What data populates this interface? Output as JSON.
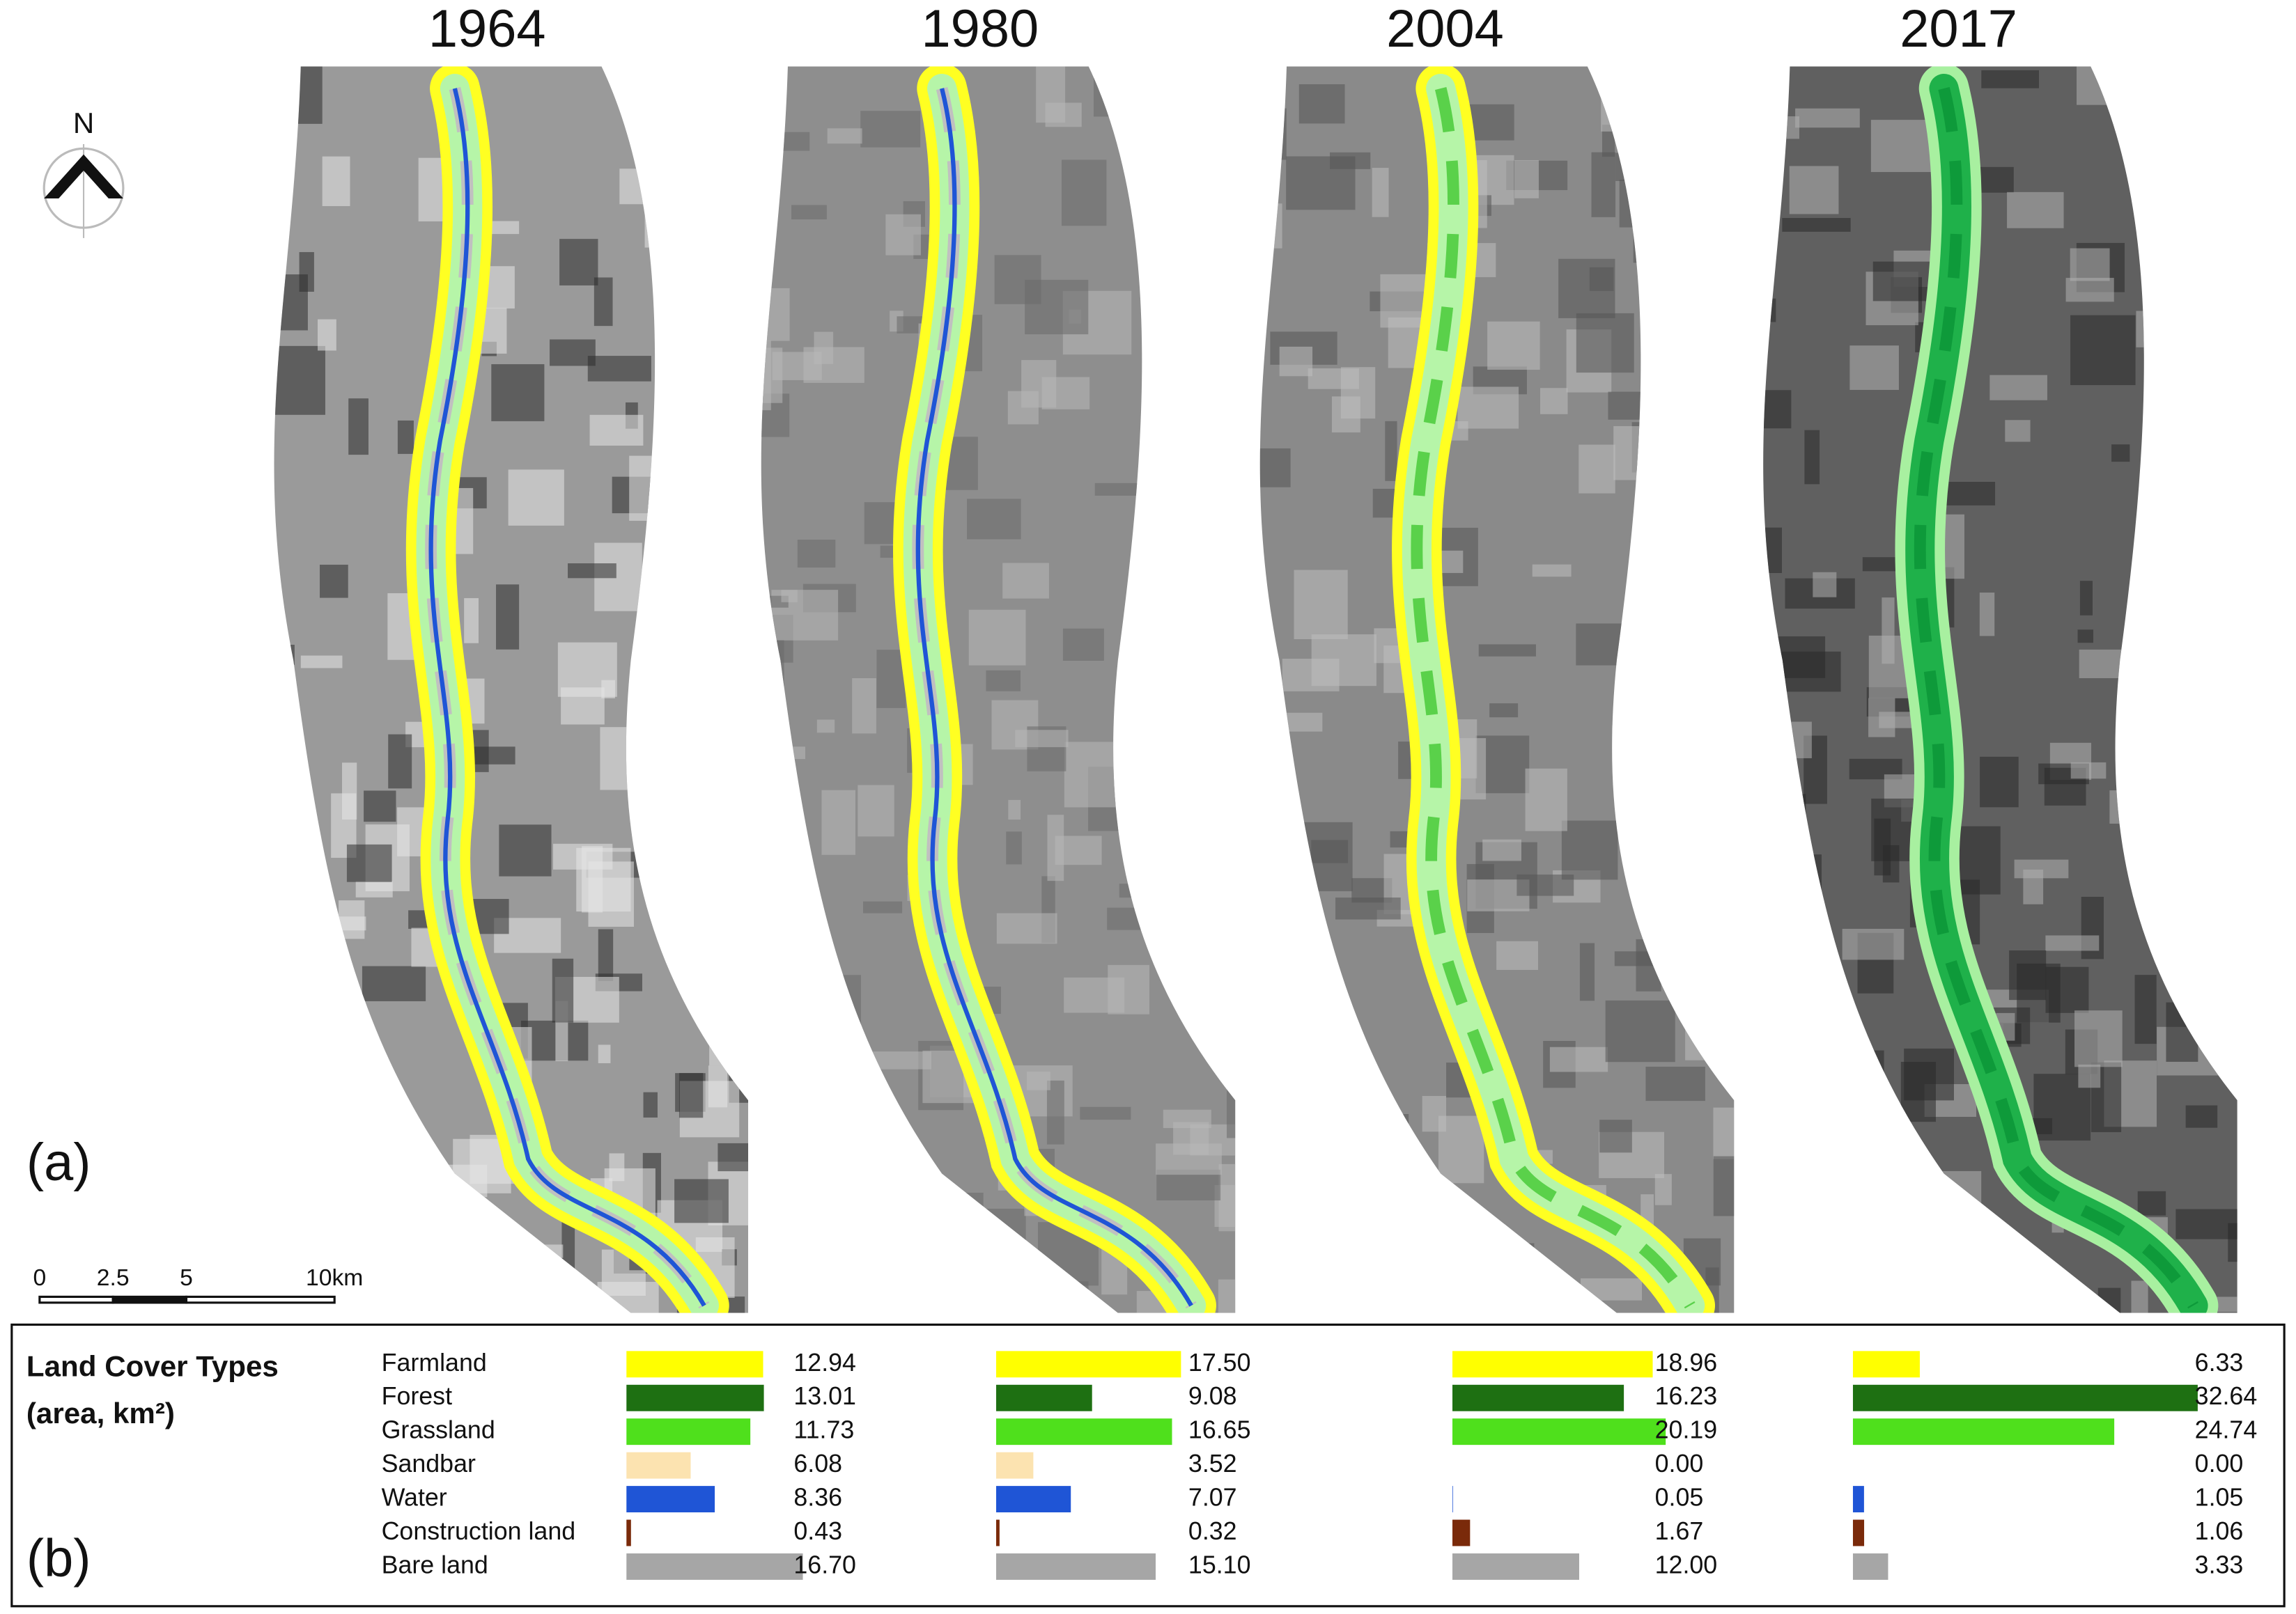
{
  "north": "N",
  "scale_bar": {
    "labels": [
      "0",
      "2.5",
      "5",
      "10km"
    ]
  },
  "panel_labels": [
    "(a)",
    "(b)"
  ],
  "legend": {
    "title": "Land Cover Types",
    "subtitle": "(area, km²)"
  },
  "chart_data": {
    "type": "bar",
    "categories": [
      "Farmland",
      "Forest",
      "Grassland",
      "Sandbar",
      "Water",
      "Construction land",
      "Bare land"
    ],
    "colors": [
      "#ffff00",
      "#1e7012",
      "#4fe01c",
      "#fce3b0",
      "#1f55d6",
      "#7a2a0a",
      "#a6a6a6"
    ],
    "series": [
      {
        "name": "1964",
        "values": [
          12.94,
          13.01,
          11.73,
          6.08,
          8.36,
          0.43,
          16.7
        ],
        "value_labels": [
          "12.94",
          "13.01",
          "11.73",
          "6.08",
          "8.36",
          "0.43",
          "16.70"
        ]
      },
      {
        "name": "1980",
        "values": [
          17.5,
          9.08,
          16.65,
          3.52,
          7.07,
          0.32,
          15.1
        ],
        "value_labels": [
          "17.50",
          "9.08",
          "16.65",
          "3.52",
          "7.07",
          "0.32",
          "15.10"
        ]
      },
      {
        "name": "2004",
        "values": [
          18.96,
          16.23,
          20.19,
          0.0,
          0.05,
          1.67,
          12.0
        ],
        "value_labels": [
          "18.96",
          "16.23",
          "20.19",
          "0.00",
          "0.05",
          "1.67",
          "12.00"
        ]
      },
      {
        "name": "2017",
        "values": [
          6.33,
          32.64,
          24.74,
          0.0,
          1.05,
          1.06,
          3.33
        ],
        "value_labels": [
          "6.33",
          "32.64",
          "24.74",
          "0.00",
          "1.05",
          "1.06",
          "3.33"
        ]
      }
    ]
  }
}
